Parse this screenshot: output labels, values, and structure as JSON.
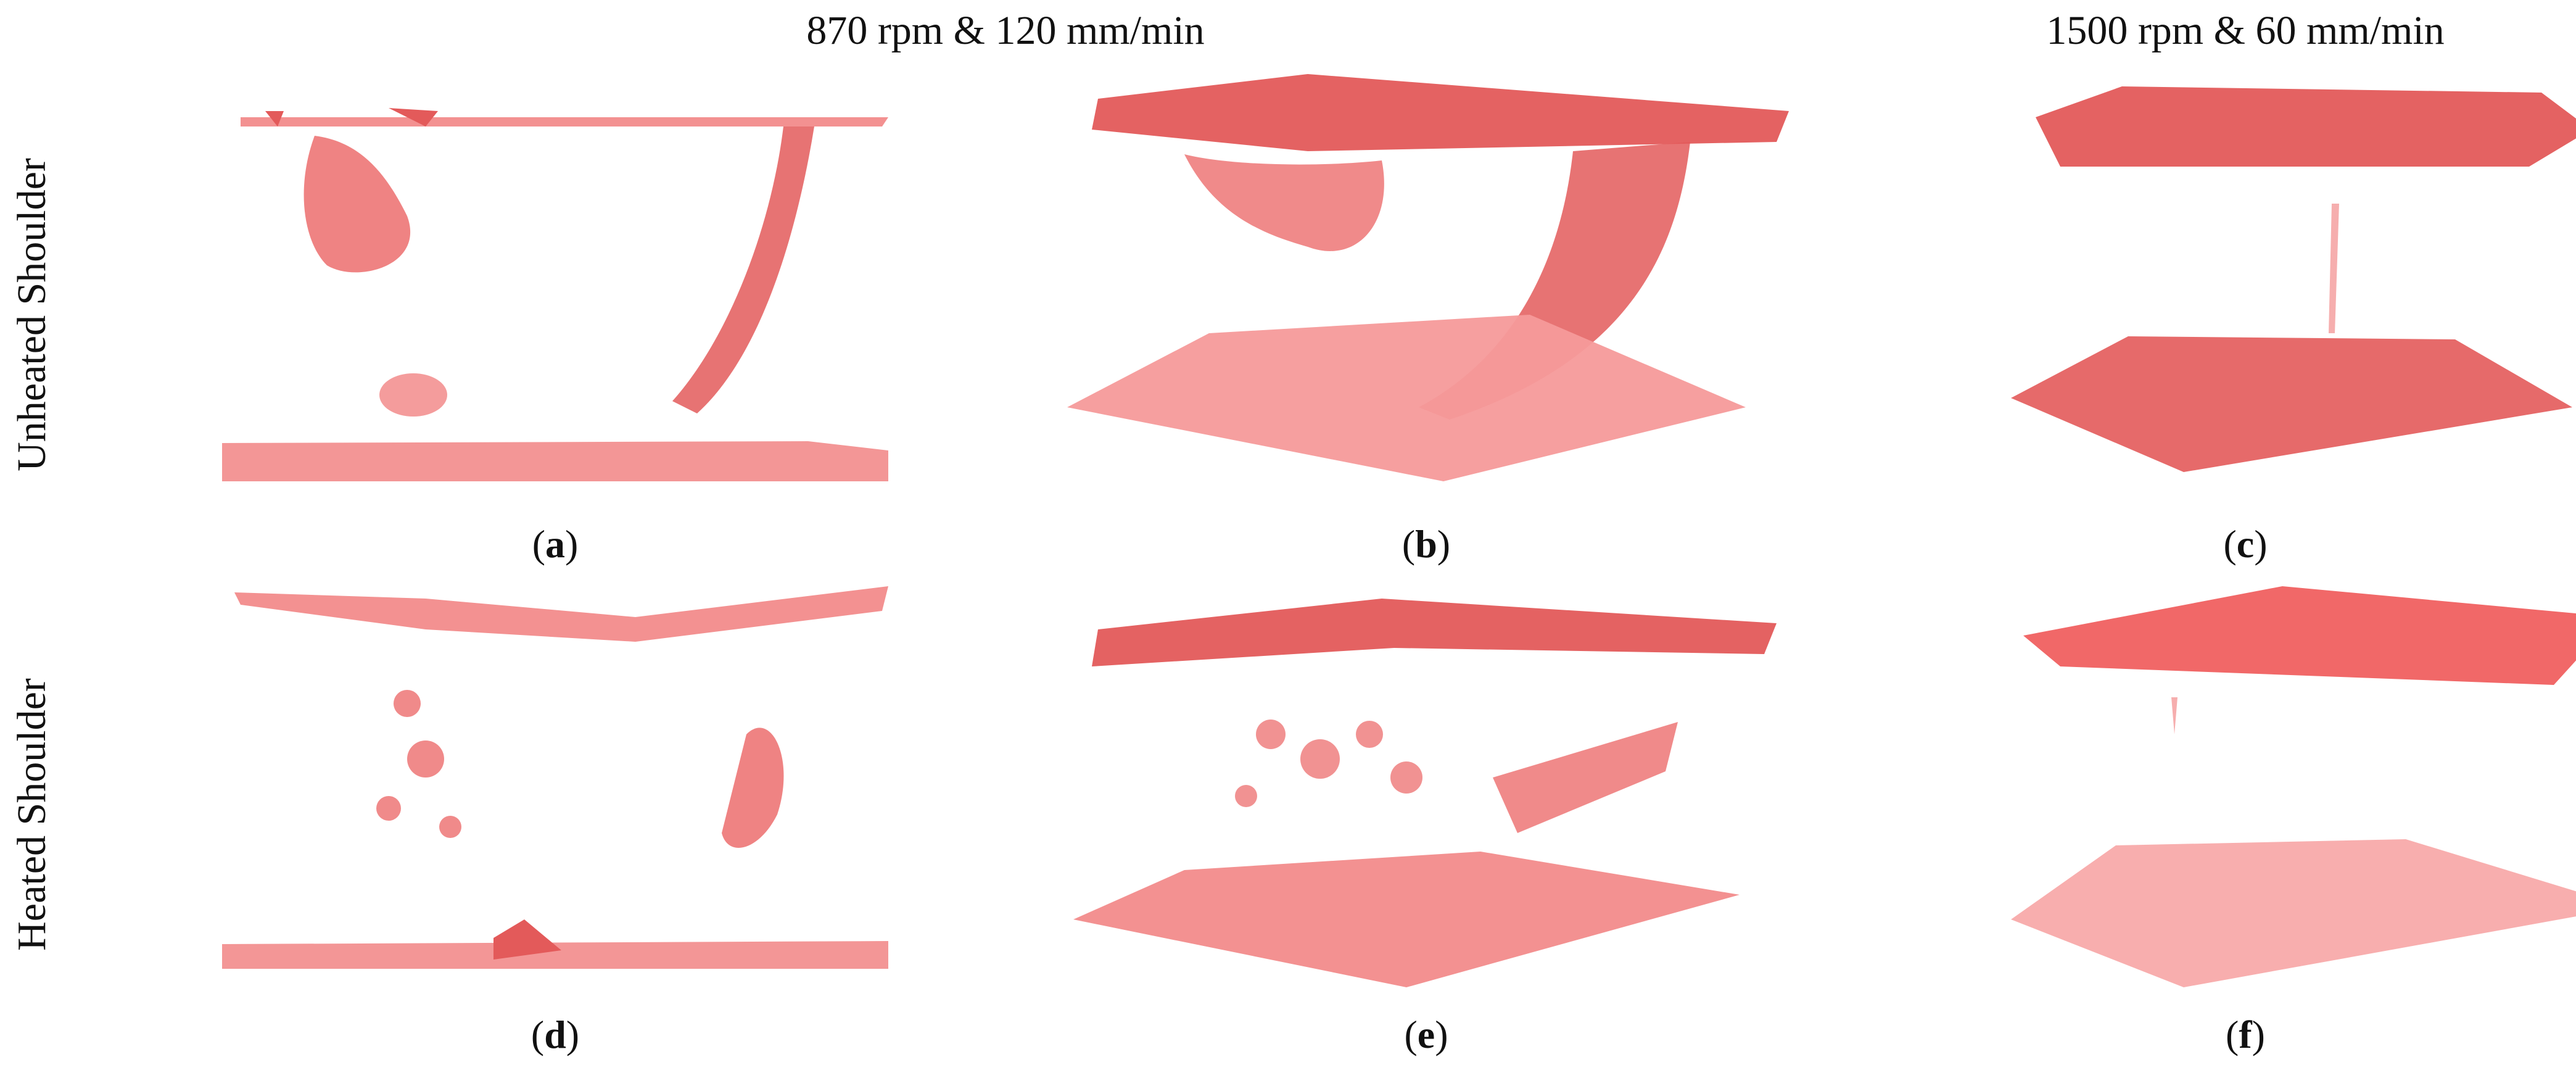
{
  "headings": {
    "col_left": "870 rpm & 120 mm/min",
    "col_right": "1500 rpm & 60 mm/min"
  },
  "row_labels": {
    "top": "Unheated Shoulder",
    "bottom": "Heated Shoulder"
  },
  "panels": [
    {
      "id": "a",
      "letter": "a"
    },
    {
      "id": "b",
      "letter": "b"
    },
    {
      "id": "c",
      "letter": "c"
    },
    {
      "id": "d",
      "letter": "d"
    },
    {
      "id": "e",
      "letter": "e"
    },
    {
      "id": "f",
      "letter": "f"
    }
  ],
  "colors": {
    "plate": "#f28b8b",
    "plate_dark": "#e35a5a",
    "defect": "#ec6d6d",
    "background": "#ffffff"
  }
}
